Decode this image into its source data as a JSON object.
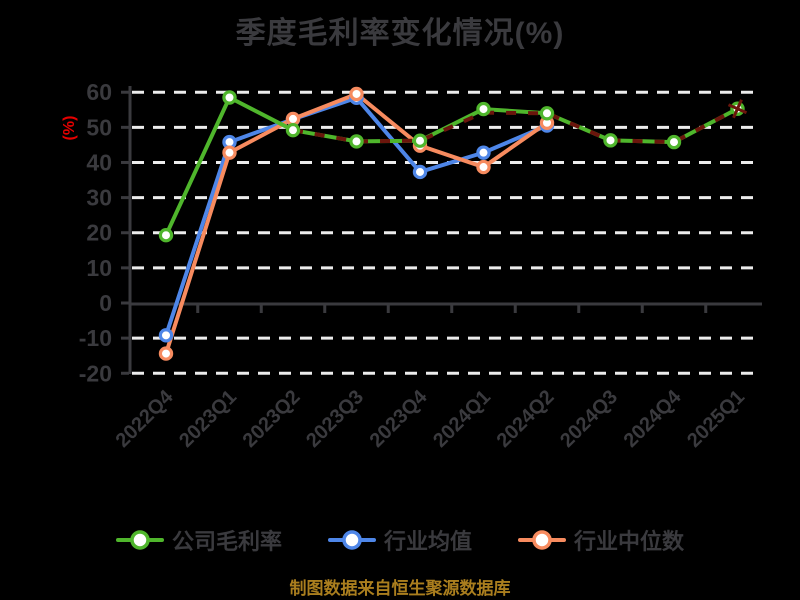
{
  "chart_data": {
    "type": "line",
    "title": "季度毛利率变化情况(%)",
    "ylabel": "(%)",
    "source_note": "制图数据来自恒生聚源数据库",
    "categories": [
      "2022Q4",
      "2023Q1",
      "2023Q2",
      "2023Q3",
      "2023Q4",
      "2024Q1",
      "2024Q2",
      "2024Q3",
      "2024Q4",
      "2025Q1"
    ],
    "y_ticks": [
      60,
      50,
      40,
      30,
      20,
      10,
      0,
      -10,
      -20
    ],
    "ylim": [
      -20,
      60
    ],
    "grid": "dashed-horizontal-white",
    "legend_position": "bottom",
    "series": [
      {
        "name": "公司毛利率",
        "color": "#4fb62c",
        "values": [
          19.3,
          58.5,
          49.2,
          46.0,
          46.2,
          55.2,
          54.0,
          46.3,
          45.8,
          55.3
        ]
      },
      {
        "name": "行业均值",
        "color": "#4e86e8",
        "values": [
          -9.2,
          45.8,
          52.3,
          58.4,
          37.3,
          42.8,
          50.5,
          null,
          null,
          null
        ]
      },
      {
        "name": "行业中位数",
        "color": "#f78b5f",
        "values": [
          -14.4,
          42.8,
          52.4,
          59.5,
          44.8,
          38.7,
          51.3,
          null,
          null,
          null
        ]
      }
    ],
    "overlay_series": {
      "name": "faint-dark-red-dashed-overlay",
      "color": "#6b150c",
      "values": [
        null,
        null,
        49.2,
        46.0,
        46.2,
        54.2,
        54.0,
        46.3,
        45.8,
        55.3
      ],
      "end_marker": "cross"
    },
    "colors": {
      "background": "#000000",
      "title": "#3a3a3e",
      "axis": "#3a3a3e",
      "tick_label": "#3a3a3e",
      "gridline": "#ececec",
      "ylabel": "#e60000",
      "footer": "#aa7e1e",
      "legend_label": "#3a3a3e",
      "marker_fill": "#ffffff"
    }
  }
}
